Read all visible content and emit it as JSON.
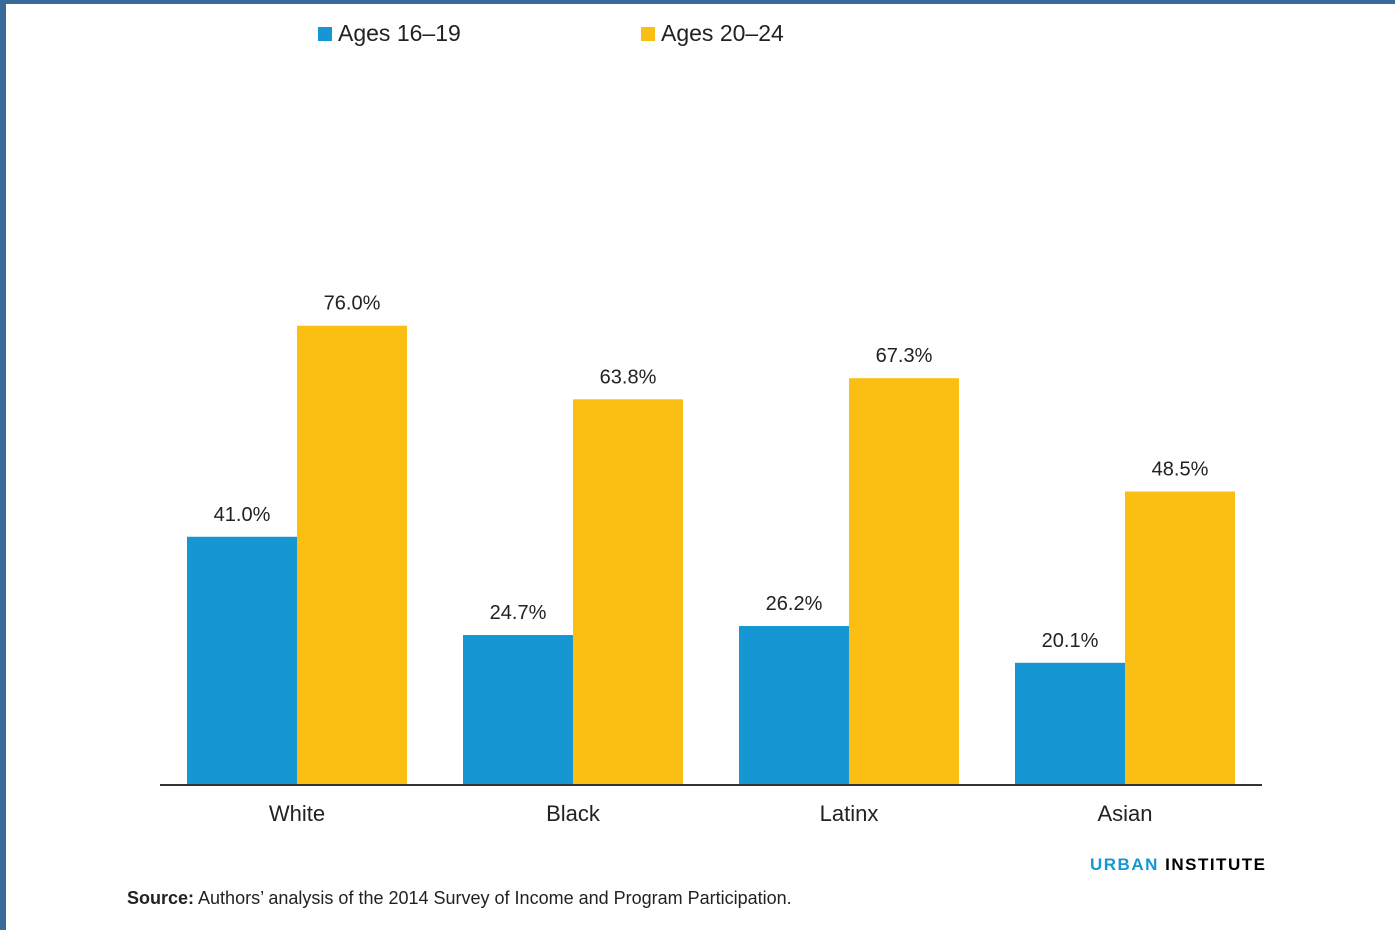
{
  "colors": {
    "series1": "#1696d2",
    "series2": "#fbbf14",
    "axis": "#333333",
    "label": "#222222",
    "brand_blue": "#1696d2",
    "brand_black": "#000000"
  },
  "legend": [
    {
      "label": "Ages 16–19",
      "color": "#1696d2"
    },
    {
      "label": "Ages 20–24",
      "color": "#fbbf14"
    }
  ],
  "chart_data": {
    "type": "bar",
    "categories": [
      "White",
      "Black",
      "Latinx",
      "Asian"
    ],
    "series": [
      {
        "name": "Ages 16–19",
        "values": [
          41.0,
          24.7,
          26.2,
          20.1
        ],
        "color": "#1696d2"
      },
      {
        "name": "Ages 20–24",
        "values": [
          76.0,
          63.8,
          67.3,
          48.5
        ],
        "color": "#fbbf14"
      }
    ],
    "value_labels": [
      [
        "41.0%",
        "24.7%",
        "26.2%",
        "20.1%"
      ],
      [
        "76.0%",
        "63.8%",
        "67.3%",
        "48.5%"
      ]
    ],
    "ylim": [
      0,
      100
    ],
    "grid": false,
    "legend_position": "top"
  },
  "source": {
    "prefix": "Source:",
    "text": " Authors’ analysis of the 2014 Survey of Income and Program Participation."
  },
  "brand": {
    "part1": "URBAN",
    "part2": " INSTITUTE"
  }
}
